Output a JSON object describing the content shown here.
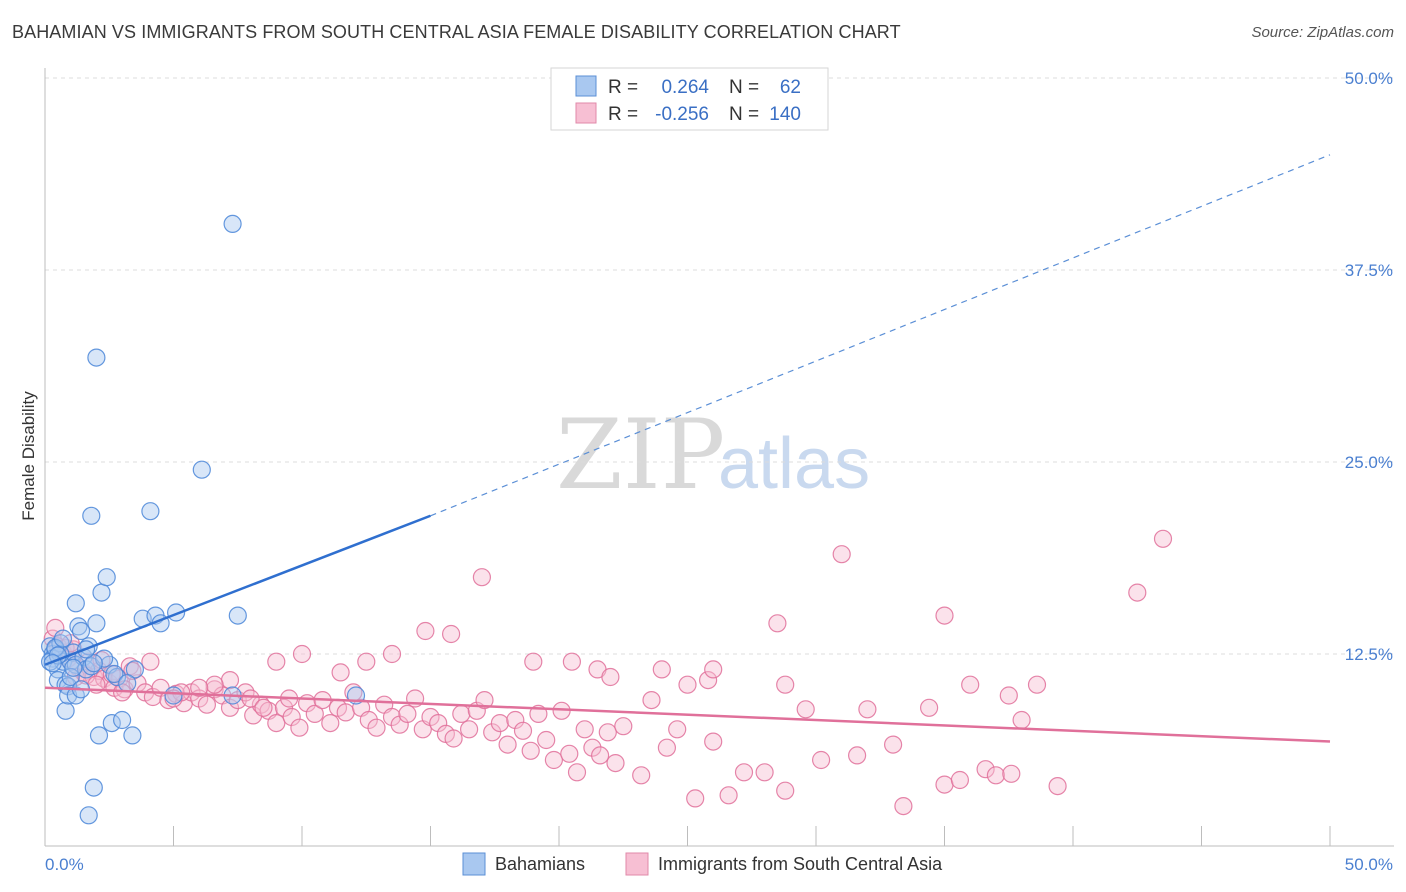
{
  "header": {
    "title": "BAHAMIAN VS IMMIGRANTS FROM SOUTH CENTRAL ASIA FEMALE DISABILITY CORRELATION CHART",
    "source": "Source: ZipAtlas.com"
  },
  "watermark": {
    "part1": "ZIP",
    "part2": "atlas"
  },
  "legend": {
    "r_label": "R =",
    "n_label": "N =",
    "rows": [
      {
        "r": "0.264",
        "n": "62"
      },
      {
        "r": "-0.256",
        "n": "140"
      }
    ]
  },
  "chart_data": {
    "type": "scatter",
    "title": "BAHAMIAN VS IMMIGRANTS FROM SOUTH CENTRAL ASIA FEMALE DISABILITY CORRELATION CHART",
    "xlabel": "",
    "ylabel": "Female Disability",
    "xlim": [
      0,
      50
    ],
    "ylim": [
      0,
      50
    ],
    "x_tick_labels": [
      "0.0%",
      "50.0%"
    ],
    "y_ticks": [
      12.5,
      25.0,
      37.5,
      50.0
    ],
    "y_tick_labels": [
      "12.5%",
      "25.0%",
      "37.5%",
      "50.0%"
    ],
    "grid": true,
    "series": [
      {
        "name": "Bahamians",
        "color": "#4a86d8",
        "fill": "#a9c8f0",
        "r": 0.264,
        "n": 62,
        "trend": {
          "x": [
            0,
            15
          ],
          "y": [
            11.8,
            21.5
          ],
          "dashed_to": [
            50,
            45
          ]
        },
        "points": [
          [
            0.2,
            13.0
          ],
          [
            0.3,
            12.5
          ],
          [
            0.4,
            12.8
          ],
          [
            0.3,
            12.2
          ],
          [
            0.5,
            11.5
          ],
          [
            0.6,
            13.2
          ],
          [
            0.7,
            12.0
          ],
          [
            0.5,
            10.8
          ],
          [
            0.8,
            10.5
          ],
          [
            0.9,
            10.4
          ],
          [
            1.0,
            12.0
          ],
          [
            1.1,
            12.6
          ],
          [
            1.2,
            11.8
          ],
          [
            1.3,
            14.3
          ],
          [
            1.2,
            15.8
          ],
          [
            1.4,
            14.0
          ],
          [
            1.5,
            12.3
          ],
          [
            1.6,
            11.5
          ],
          [
            1.8,
            11.7
          ],
          [
            1.7,
            13.0
          ],
          [
            2.0,
            14.5
          ],
          [
            2.2,
            16.5
          ],
          [
            2.4,
            17.5
          ],
          [
            2.5,
            11.8
          ],
          [
            2.8,
            11.0
          ],
          [
            2.6,
            8.0
          ],
          [
            3.0,
            8.2
          ],
          [
            3.4,
            7.2
          ],
          [
            3.5,
            11.5
          ],
          [
            3.8,
            14.8
          ],
          [
            4.3,
            15.0
          ],
          [
            4.5,
            14.5
          ],
          [
            5.1,
            15.2
          ],
          [
            5.0,
            9.8
          ],
          [
            7.3,
            9.8
          ],
          [
            7.5,
            15.0
          ],
          [
            12.1,
            9.8
          ],
          [
            1.8,
            21.5
          ],
          [
            4.1,
            21.8
          ],
          [
            6.1,
            24.5
          ],
          [
            2.0,
            31.8
          ],
          [
            7.3,
            40.5
          ],
          [
            1.9,
            3.8
          ],
          [
            1.7,
            2.0
          ],
          [
            2.1,
            7.2
          ],
          [
            0.8,
            8.8
          ],
          [
            0.9,
            9.8
          ],
          [
            1.2,
            9.8
          ],
          [
            0.6,
            12.5
          ],
          [
            0.4,
            12.9
          ],
          [
            1.0,
            11.0
          ],
          [
            1.4,
            10.2
          ],
          [
            2.3,
            12.2
          ],
          [
            0.2,
            12.0
          ],
          [
            0.5,
            12.4
          ],
          [
            1.1,
            11.6
          ],
          [
            1.9,
            11.9
          ],
          [
            2.7,
            11.2
          ],
          [
            3.2,
            10.6
          ],
          [
            0.7,
            13.5
          ],
          [
            1.6,
            12.8
          ],
          [
            0.3,
            11.9
          ]
        ]
      },
      {
        "name": "Immigrants from South Central Asia",
        "color": "#e0709a",
        "fill": "#f7bfd3",
        "r": -0.256,
        "n": 140,
        "trend": {
          "x": [
            0,
            50
          ],
          "y": [
            10.3,
            6.8
          ]
        },
        "points": [
          [
            0.3,
            13.5
          ],
          [
            0.5,
            13.0
          ],
          [
            0.7,
            12.6
          ],
          [
            0.9,
            12.2
          ],
          [
            1.1,
            12.8
          ],
          [
            1.3,
            11.6
          ],
          [
            1.5,
            11.3
          ],
          [
            1.7,
            12.0
          ],
          [
            1.9,
            11.0
          ],
          [
            2.1,
            11.4
          ],
          [
            2.3,
            10.9
          ],
          [
            2.5,
            10.6
          ],
          [
            2.7,
            10.3
          ],
          [
            2.9,
            10.9
          ],
          [
            3.1,
            10.2
          ],
          [
            3.3,
            11.7
          ],
          [
            3.6,
            10.6
          ],
          [
            3.9,
            10.0
          ],
          [
            4.2,
            9.7
          ],
          [
            4.5,
            10.3
          ],
          [
            4.8,
            9.5
          ],
          [
            5.1,
            9.9
          ],
          [
            5.4,
            9.3
          ],
          [
            5.7,
            10.0
          ],
          [
            6.0,
            9.6
          ],
          [
            6.3,
            9.2
          ],
          [
            6.6,
            10.2
          ],
          [
            6.9,
            9.8
          ],
          [
            7.2,
            9.0
          ],
          [
            7.5,
            9.5
          ],
          [
            7.8,
            10.0
          ],
          [
            8.1,
            8.5
          ],
          [
            8.4,
            9.2
          ],
          [
            8.7,
            8.8
          ],
          [
            9.0,
            8.0
          ],
          [
            9.3,
            9.0
          ],
          [
            9.6,
            8.4
          ],
          [
            9.9,
            7.7
          ],
          [
            10.2,
            9.3
          ],
          [
            10.5,
            8.6
          ],
          [
            10.8,
            9.5
          ],
          [
            11.1,
            8.0
          ],
          [
            11.4,
            9.0
          ],
          [
            11.7,
            8.7
          ],
          [
            12.0,
            10.0
          ],
          [
            12.3,
            9.0
          ],
          [
            12.6,
            8.2
          ],
          [
            12.9,
            7.7
          ],
          [
            13.2,
            9.2
          ],
          [
            13.5,
            8.4
          ],
          [
            13.8,
            7.9
          ],
          [
            14.1,
            8.6
          ],
          [
            14.4,
            9.6
          ],
          [
            14.7,
            7.6
          ],
          [
            15.0,
            8.4
          ],
          [
            15.3,
            8.0
          ],
          [
            15.6,
            7.3
          ],
          [
            15.9,
            7.0
          ],
          [
            16.2,
            8.6
          ],
          [
            16.5,
            7.6
          ],
          [
            16.8,
            8.8
          ],
          [
            17.1,
            9.5
          ],
          [
            17.4,
            7.4
          ],
          [
            17.7,
            8.0
          ],
          [
            18.0,
            6.6
          ],
          [
            18.3,
            8.2
          ],
          [
            18.6,
            7.5
          ],
          [
            18.9,
            6.2
          ],
          [
            19.2,
            8.6
          ],
          [
            19.5,
            6.9
          ],
          [
            19.8,
            5.6
          ],
          [
            20.1,
            8.8
          ],
          [
            20.4,
            6.0
          ],
          [
            20.7,
            4.8
          ],
          [
            21.0,
            7.6
          ],
          [
            21.3,
            6.4
          ],
          [
            21.6,
            5.9
          ],
          [
            21.9,
            7.4
          ],
          [
            22.2,
            5.4
          ],
          [
            22.5,
            7.8
          ],
          [
            23.2,
            4.6
          ],
          [
            23.6,
            9.5
          ],
          [
            24.2,
            6.4
          ],
          [
            24.6,
            7.6
          ],
          [
            25.3,
            3.1
          ],
          [
            25.8,
            10.8
          ],
          [
            26.0,
            6.8
          ],
          [
            26.6,
            3.3
          ],
          [
            27.2,
            4.8
          ],
          [
            28.0,
            4.8
          ],
          [
            28.8,
            3.6
          ],
          [
            29.6,
            8.9
          ],
          [
            30.2,
            5.6
          ],
          [
            31.0,
            19.0
          ],
          [
            31.6,
            5.9
          ],
          [
            32.0,
            8.9
          ],
          [
            33.0,
            6.6
          ],
          [
            33.4,
            2.6
          ],
          [
            34.4,
            9.0
          ],
          [
            35.0,
            4.0
          ],
          [
            35.6,
            4.3
          ],
          [
            36.6,
            5.0
          ],
          [
            37.0,
            4.6
          ],
          [
            37.6,
            4.7
          ],
          [
            38.6,
            10.5
          ],
          [
            39.4,
            3.9
          ],
          [
            35.0,
            15.0
          ],
          [
            36.0,
            10.5
          ],
          [
            37.5,
            9.8
          ],
          [
            38.0,
            8.2
          ],
          [
            42.5,
            16.5
          ],
          [
            43.5,
            20.0
          ],
          [
            13.5,
            12.5
          ],
          [
            14.8,
            14.0
          ],
          [
            17.0,
            17.5
          ],
          [
            15.8,
            13.8
          ],
          [
            19.0,
            12.0
          ],
          [
            20.5,
            12.0
          ],
          [
            21.5,
            11.5
          ],
          [
            22.0,
            11.0
          ],
          [
            24.0,
            11.5
          ],
          [
            25.0,
            10.5
          ],
          [
            26.0,
            11.5
          ],
          [
            28.5,
            14.5
          ],
          [
            28.8,
            10.5
          ],
          [
            7.2,
            10.8
          ],
          [
            9.0,
            12.0
          ],
          [
            10.0,
            12.5
          ],
          [
            11.5,
            11.3
          ],
          [
            12.5,
            12.0
          ],
          [
            8.0,
            9.6
          ],
          [
            6.6,
            10.5
          ],
          [
            5.3,
            10.0
          ],
          [
            4.1,
            12.0
          ],
          [
            3.4,
            11.4
          ],
          [
            2.2,
            12.1
          ],
          [
            1.2,
            11.0
          ],
          [
            0.8,
            12.9
          ],
          [
            0.4,
            14.2
          ],
          [
            1.0,
            13.2
          ],
          [
            1.6,
            11.1
          ],
          [
            2.0,
            10.5
          ],
          [
            2.6,
            11.2
          ],
          [
            3.0,
            10.0
          ],
          [
            5.0,
            9.6
          ],
          [
            6.0,
            10.3
          ],
          [
            8.5,
            9.0
          ],
          [
            9.5,
            9.6
          ]
        ]
      }
    ]
  },
  "bottom_legend": {
    "items": [
      {
        "label": "Bahamians"
      },
      {
        "label": "Immigrants from South Central Asia"
      }
    ]
  }
}
